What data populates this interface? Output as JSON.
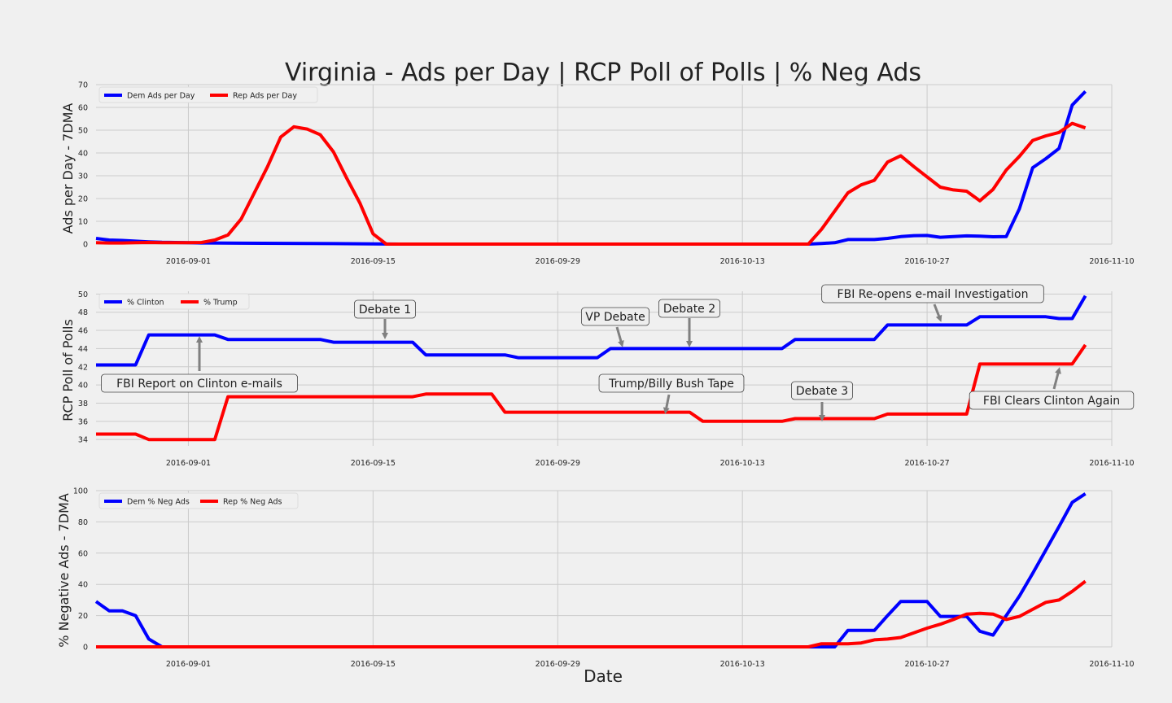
{
  "figure": {
    "title": "Virginia - Ads per Day | RCP Poll of Polls | % Neg Ads",
    "xlabel": "Date"
  },
  "colors": {
    "dem": "#0000ff",
    "rep": "#ff0000",
    "arrow": "#808080"
  },
  "chart_data": [
    {
      "type": "line",
      "ylabel": "Ads per Day - 7DMA",
      "xlim": [
        "2016-08-25",
        "2016-11-08"
      ],
      "ylim": [
        0,
        70
      ],
      "yticks": [
        0,
        10,
        20,
        30,
        40,
        50,
        60,
        70
      ],
      "xticks": [
        "2016-09-01",
        "2016-09-15",
        "2016-09-29",
        "2016-10-13",
        "2016-10-27",
        "2016-11-10"
      ],
      "grid": true,
      "legend_position": "top-left",
      "series": [
        {
          "name": "Dem Ads per Day",
          "color": "#0000ff",
          "points": [
            [
              "2016-08-25",
              2.5
            ],
            [
              "2016-08-26",
              1.8
            ],
            [
              "2016-08-27",
              1.6
            ],
            [
              "2016-08-28",
              1.3
            ],
            [
              "2016-08-29",
              1.0
            ],
            [
              "2016-08-30",
              0.8
            ],
            [
              "2016-08-31",
              0.7
            ],
            [
              "2016-09-01",
              0.6
            ],
            [
              "2016-09-02",
              0.5
            ],
            [
              "2016-09-05",
              0.4
            ],
            [
              "2016-09-10",
              0.3
            ],
            [
              "2016-09-12",
              0.2
            ],
            [
              "2016-09-15",
              0.1
            ],
            [
              "2016-09-17",
              0
            ],
            [
              "2016-10-18",
              0
            ],
            [
              "2016-10-19",
              0.3
            ],
            [
              "2016-10-20",
              0.6
            ],
            [
              "2016-10-21",
              2.0
            ],
            [
              "2016-10-22",
              2.0
            ],
            [
              "2016-10-23",
              2.0
            ],
            [
              "2016-10-24",
              2.5
            ],
            [
              "2016-10-25",
              3.3
            ],
            [
              "2016-10-26",
              3.7
            ],
            [
              "2016-10-27",
              3.8
            ],
            [
              "2016-10-28",
              3.0
            ],
            [
              "2016-10-29",
              3.3
            ],
            [
              "2016-10-30",
              3.6
            ],
            [
              "2016-10-31",
              3.5
            ],
            [
              "2016-11-01",
              3.2
            ],
            [
              "2016-11-02",
              3.3
            ],
            [
              "2016-11-03",
              15.5
            ],
            [
              "2016-11-04",
              33.5
            ],
            [
              "2016-11-05",
              37.5
            ],
            [
              "2016-11-06",
              42.0
            ],
            [
              "2016-11-07",
              61.0
            ],
            [
              "2016-11-08",
              67.0
            ]
          ]
        },
        {
          "name": "Rep Ads per Day",
          "color": "#ff0000",
          "points": [
            [
              "2016-08-25",
              0.6
            ],
            [
              "2016-08-26",
              0.5
            ],
            [
              "2016-08-27",
              0.5
            ],
            [
              "2016-08-28",
              0.6
            ],
            [
              "2016-08-29",
              0.7
            ],
            [
              "2016-08-30",
              0.6
            ],
            [
              "2016-08-31",
              0.6
            ],
            [
              "2016-09-01",
              0.6
            ],
            [
              "2016-09-02",
              0.7
            ],
            [
              "2016-09-03",
              1.8
            ],
            [
              "2016-09-04",
              4.0
            ],
            [
              "2016-09-05",
              11.0
            ],
            [
              "2016-09-06",
              22.5
            ],
            [
              "2016-09-07",
              34.0
            ],
            [
              "2016-09-08",
              47.0
            ],
            [
              "2016-09-09",
              51.5
            ],
            [
              "2016-09-10",
              50.5
            ],
            [
              "2016-09-11",
              48.0
            ],
            [
              "2016-09-12",
              40.5
            ],
            [
              "2016-09-13",
              29.0
            ],
            [
              "2016-09-14",
              18.0
            ],
            [
              "2016-09-15",
              4.5
            ],
            [
              "2016-09-16",
              0
            ],
            [
              "2016-10-18",
              0
            ],
            [
              "2016-10-19",
              6.5
            ],
            [
              "2016-10-20",
              14.5
            ],
            [
              "2016-10-21",
              22.5
            ],
            [
              "2016-10-22",
              26.0
            ],
            [
              "2016-10-23",
              28.0
            ],
            [
              "2016-10-24",
              36.0
            ],
            [
              "2016-10-25",
              38.8
            ],
            [
              "2016-10-26",
              34.0
            ],
            [
              "2016-10-27",
              29.5
            ],
            [
              "2016-10-28",
              25.0
            ],
            [
              "2016-10-29",
              23.8
            ],
            [
              "2016-10-30",
              23.2
            ],
            [
              "2016-10-31",
              19.0
            ],
            [
              "2016-11-01",
              24.0
            ],
            [
              "2016-11-02",
              32.5
            ],
            [
              "2016-11-03",
              38.5
            ],
            [
              "2016-11-04",
              45.5
            ],
            [
              "2016-11-05",
              47.5
            ],
            [
              "2016-11-06",
              49.0
            ],
            [
              "2016-11-07",
              53.0
            ],
            [
              "2016-11-08",
              51.0
            ]
          ]
        }
      ]
    },
    {
      "type": "line",
      "ylabel": "RCP Poll of Polls",
      "xlim": [
        "2016-08-25",
        "2016-11-08"
      ],
      "ylim": [
        33.3,
        50.3
      ],
      "yticks": [
        34,
        36,
        38,
        40,
        42,
        44,
        46,
        48,
        50
      ],
      "xticks": [
        "2016-09-01",
        "2016-09-15",
        "2016-09-29",
        "2016-10-13",
        "2016-10-27",
        "2016-11-10"
      ],
      "grid": true,
      "legend_position": "top-left",
      "series": [
        {
          "name": "% Clinton",
          "color": "#0000ff",
          "points": [
            [
              "2016-08-25",
              42.2
            ],
            [
              "2016-08-28",
              42.2
            ],
            [
              "2016-08-29",
              45.5
            ],
            [
              "2016-09-03",
              45.5
            ],
            [
              "2016-09-04",
              45.0
            ],
            [
              "2016-09-11",
              45.0
            ],
            [
              "2016-09-12",
              44.7
            ],
            [
              "2016-09-18",
              44.7
            ],
            [
              "2016-09-19",
              43.3
            ],
            [
              "2016-09-25",
              43.3
            ],
            [
              "2016-09-26",
              43.0
            ],
            [
              "2016-10-02",
              43.0
            ],
            [
              "2016-10-03",
              44.0
            ],
            [
              "2016-10-16",
              44.0
            ],
            [
              "2016-10-17",
              45.0
            ],
            [
              "2016-10-23",
              45.0
            ],
            [
              "2016-10-24",
              46.6
            ],
            [
              "2016-10-30",
              46.6
            ],
            [
              "2016-10-31",
              47.5
            ],
            [
              "2016-11-05",
              47.5
            ],
            [
              "2016-11-06",
              47.3
            ],
            [
              "2016-11-07",
              47.3
            ],
            [
              "2016-11-08",
              49.8
            ]
          ]
        },
        {
          "name": "% Trump",
          "color": "#ff0000",
          "points": [
            [
              "2016-08-25",
              34.6
            ],
            [
              "2016-08-28",
              34.6
            ],
            [
              "2016-08-29",
              34.0
            ],
            [
              "2016-09-03",
              34.0
            ],
            [
              "2016-09-04",
              38.7
            ],
            [
              "2016-09-18",
              38.7
            ],
            [
              "2016-09-19",
              39.0
            ],
            [
              "2016-09-24",
              39.0
            ],
            [
              "2016-09-25",
              37.0
            ],
            [
              "2016-10-09",
              37.0
            ],
            [
              "2016-10-10",
              36.0
            ],
            [
              "2016-10-16",
              36.0
            ],
            [
              "2016-10-17",
              36.3
            ],
            [
              "2016-10-23",
              36.3
            ],
            [
              "2016-10-24",
              36.8
            ],
            [
              "2016-10-30",
              36.8
            ],
            [
              "2016-10-31",
              42.3
            ],
            [
              "2016-11-07",
              42.3
            ],
            [
              "2016-11-08",
              44.4
            ]
          ]
        }
      ],
      "annotations": [
        {
          "text": "FBI Report on Clinton e-mails",
          "x": "2016-09-01",
          "y": 45.5
        },
        {
          "text": "Debate 1",
          "x": "2016-09-16",
          "y": 44.7
        },
        {
          "text": "VP Debate",
          "x": "2016-10-04",
          "y": 44.0
        },
        {
          "text": "Debate 2",
          "x": "2016-10-09",
          "y": 44.0
        },
        {
          "text": "Trump/Billy Bush Tape",
          "x": "2016-10-07",
          "y": 37.0
        },
        {
          "text": "Debate 3",
          "x": "2016-10-19",
          "y": 36.3
        },
        {
          "text": "FBI Re-opens e-mail Investigation",
          "x": "2016-10-28",
          "y": 46.6
        },
        {
          "text": "FBI Clears Clinton Again",
          "x": "2016-11-06",
          "y": 42.3
        }
      ]
    },
    {
      "type": "line",
      "ylabel": "% Negative Ads - 7DMA",
      "xlim": [
        "2016-08-25",
        "2016-11-08"
      ],
      "ylim": [
        0,
        100
      ],
      "yticks": [
        0,
        20,
        40,
        60,
        80,
        100
      ],
      "xticks": [
        "2016-09-01",
        "2016-09-15",
        "2016-09-29",
        "2016-10-13",
        "2016-10-27",
        "2016-11-10"
      ],
      "grid": true,
      "legend_position": "top-left",
      "series": [
        {
          "name": "Dem % Neg Ads",
          "color": "#0000ff",
          "points": [
            [
              "2016-08-25",
              29
            ],
            [
              "2016-08-26",
              23
            ],
            [
              "2016-08-27",
              23
            ],
            [
              "2016-08-28",
              20
            ],
            [
              "2016-08-29",
              5
            ],
            [
              "2016-08-30",
              0
            ],
            [
              "2016-10-19",
              0
            ],
            [
              "2016-10-20",
              0
            ],
            [
              "2016-10-21",
              10.5
            ],
            [
              "2016-10-22",
              10.5
            ],
            [
              "2016-10-23",
              10.5
            ],
            [
              "2016-10-24",
              20
            ],
            [
              "2016-10-25",
              29
            ],
            [
              "2016-10-26",
              29
            ],
            [
              "2016-10-27",
              29
            ],
            [
              "2016-10-28",
              19.5
            ],
            [
              "2016-10-29",
              19.5
            ],
            [
              "2016-10-30",
              19.5
            ],
            [
              "2016-10-31",
              10
            ],
            [
              "2016-11-01",
              7.5
            ],
            [
              "2016-11-02",
              20
            ],
            [
              "2016-11-03",
              32.5
            ],
            [
              "2016-11-04",
              47
            ],
            [
              "2016-11-05",
              62
            ],
            [
              "2016-11-06",
              77
            ],
            [
              "2016-11-07",
              92.5
            ],
            [
              "2016-11-08",
              98
            ]
          ]
        },
        {
          "name": "Rep % Neg Ads",
          "color": "#ff0000",
          "points": [
            [
              "2016-08-25",
              0
            ],
            [
              "2016-10-18",
              0
            ],
            [
              "2016-10-19",
              2
            ],
            [
              "2016-10-20",
              2
            ],
            [
              "2016-10-21",
              2
            ],
            [
              "2016-10-22",
              2.5
            ],
            [
              "2016-10-23",
              4.5
            ],
            [
              "2016-10-24",
              5
            ],
            [
              "2016-10-25",
              6
            ],
            [
              "2016-10-26",
              9
            ],
            [
              "2016-10-27",
              12
            ],
            [
              "2016-10-28",
              14.5
            ],
            [
              "2016-10-29",
              17.5
            ],
            [
              "2016-10-30",
              21
            ],
            [
              "2016-10-31",
              21.5
            ],
            [
              "2016-11-01",
              21
            ],
            [
              "2016-11-02",
              17.5
            ],
            [
              "2016-11-03",
              19.5
            ],
            [
              "2016-11-04",
              24
            ],
            [
              "2016-11-05",
              28.5
            ],
            [
              "2016-11-06",
              30
            ],
            [
              "2016-11-07",
              35.5
            ],
            [
              "2016-11-08",
              42
            ]
          ]
        }
      ]
    }
  ]
}
